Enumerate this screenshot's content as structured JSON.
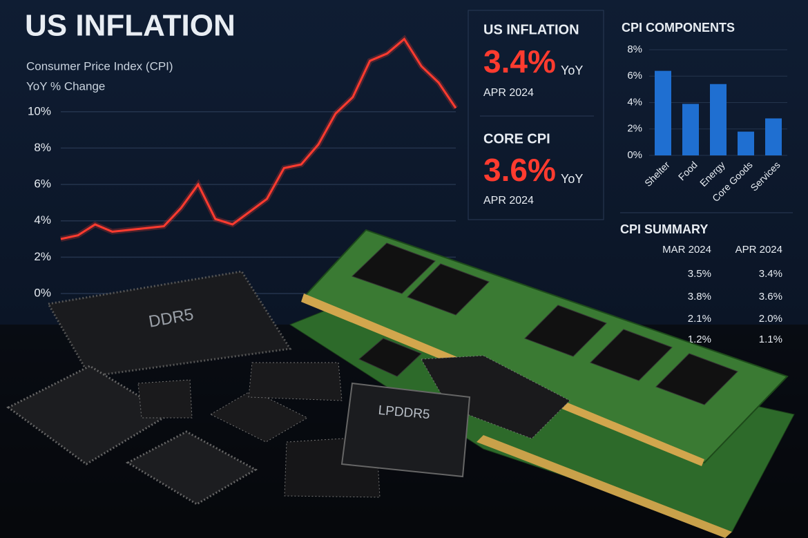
{
  "header": {
    "title": "US INFLATION",
    "subtitle": "Consumer Price Index (CPI)",
    "subtitle2": "YoY % Change"
  },
  "line_chart": {
    "type": "line",
    "color": "#ff3b2f",
    "ylim": [
      0,
      15.5
    ],
    "yticks": [
      {
        "value": 0,
        "label": "0%"
      },
      {
        "value": 2,
        "label": "2%"
      },
      {
        "value": 4,
        "label": "4%"
      },
      {
        "value": 6,
        "label": "6%"
      },
      {
        "value": 8,
        "label": "8%"
      },
      {
        "value": 10,
        "label": "10%"
      }
    ],
    "values": [
      3.0,
      3.2,
      3.8,
      3.4,
      3.5,
      3.6,
      3.7,
      4.7,
      6.0,
      4.1,
      3.8,
      4.5,
      5.2,
      6.9,
      7.1,
      8.2,
      9.9,
      10.8,
      12.8,
      13.2,
      14.0,
      12.5,
      11.6,
      10.2
    ]
  },
  "cards": [
    {
      "title": "US INFLATION",
      "value": "3.4%",
      "unit": "YoY",
      "date": "APR 2024"
    },
    {
      "title": "CORE CPI",
      "value": "3.6%",
      "unit": "YoY",
      "date": "APR 2024"
    }
  ],
  "bar_chart": {
    "type": "bar",
    "title": "CPI COMPONENTS",
    "color": "#1f6fd1",
    "ylim": [
      0,
      8
    ],
    "yticks": [
      {
        "value": 0,
        "label": "0%"
      },
      {
        "value": 2,
        "label": "2%"
      },
      {
        "value": 4,
        "label": "4%"
      },
      {
        "value": 6,
        "label": "6%"
      },
      {
        "value": 8,
        "label": "8%"
      }
    ],
    "categories": [
      "Shelter",
      "Food",
      "Energy",
      "Core Goods",
      "Services"
    ],
    "values": [
      6.4,
      3.9,
      5.4,
      1.8,
      2.8
    ]
  },
  "summary": {
    "title": "CPI SUMMARY",
    "columns": [
      "MAR 2024",
      "APR 2024"
    ],
    "rows": [
      [
        "3.5%",
        "3.4%"
      ],
      [
        "3.8%",
        "3.6%"
      ],
      [
        "2.1%",
        "2.0%"
      ],
      [
        "1.2%",
        "1.1%"
      ]
    ]
  },
  "chips": {
    "label1": "DDR5",
    "label2": "LPDDR5"
  }
}
